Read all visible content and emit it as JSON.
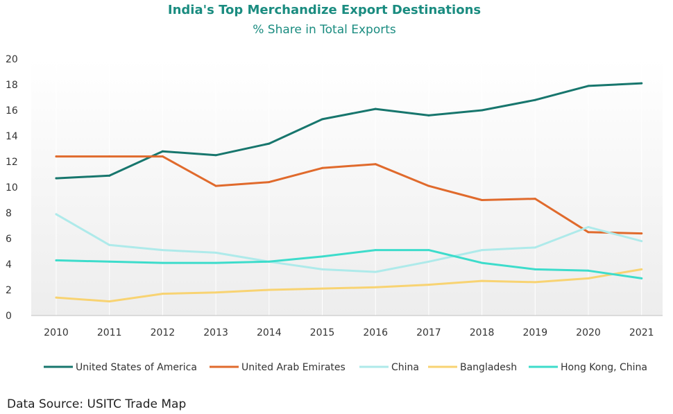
{
  "chart_data": {
    "type": "line",
    "title": "India's Top Merchandize Export Destinations",
    "subtitle": "% Share in Total Exports",
    "x": [
      "2010",
      "2011",
      "2012",
      "2013",
      "2014",
      "2015",
      "2016",
      "2017",
      "2018",
      "2019",
      "2020",
      "2021"
    ],
    "ylim": [
      0,
      20
    ],
    "yticks": [
      0,
      2,
      4,
      6,
      8,
      10,
      12,
      14,
      16,
      18,
      20
    ],
    "grid": "vertical",
    "legend": "bottom",
    "series": [
      {
        "name": "United States of America",
        "color": "#17766d",
        "values": [
          10.7,
          10.9,
          12.8,
          12.5,
          13.4,
          15.3,
          16.1,
          15.6,
          16.0,
          16.8,
          17.9,
          18.1
        ]
      },
      {
        "name": "United Arab Emirates",
        "color": "#e06a2c",
        "values": [
          12.4,
          12.4,
          12.4,
          10.1,
          10.4,
          11.5,
          11.8,
          10.1,
          9.0,
          9.1,
          6.5,
          6.4
        ]
      },
      {
        "name": "China",
        "color": "#aeeaea",
        "values": [
          7.9,
          5.5,
          5.1,
          4.9,
          4.2,
          3.6,
          3.4,
          4.2,
          5.1,
          5.3,
          6.9,
          5.8
        ]
      },
      {
        "name": "Bangladesh",
        "color": "#f8d372",
        "values": [
          1.4,
          1.1,
          1.7,
          1.8,
          2.0,
          2.1,
          2.2,
          2.4,
          2.7,
          2.6,
          2.9,
          3.6
        ]
      },
      {
        "name": "Hong Kong, China",
        "color": "#3ddccb",
        "values": [
          4.3,
          4.2,
          4.1,
          4.1,
          4.2,
          4.6,
          5.1,
          5.1,
          4.1,
          3.6,
          3.5,
          2.9
        ]
      }
    ]
  },
  "footer": {
    "source": "Data Source: USITC Trade Map"
  }
}
